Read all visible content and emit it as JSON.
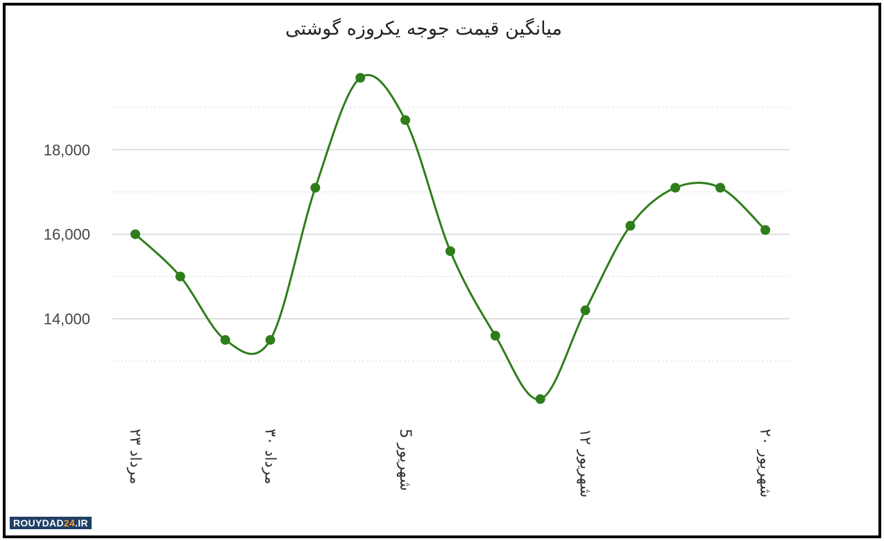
{
  "watermark": {
    "brand_left": "ROUYDAD",
    "brand_num": "24",
    "brand_right": ".IR"
  },
  "chart_data": {
    "type": "line",
    "title": "میانگین قیمت جوجه یکروزه گوشتی",
    "xlabel": "",
    "ylabel": "",
    "ylim": [
      11500,
      19900
    ],
    "y_ticks": [
      14000,
      16000,
      18000
    ],
    "y_tick_labels": [
      "14,000",
      "16,000",
      "18,000"
    ],
    "grid": true,
    "x_tick_labels": [
      "۲۳ مرداد",
      "۳۰ مرداد",
      "5 شهریور",
      "۱۲ شهریور",
      "۲۰ شهریور"
    ],
    "x_tick_positions": [
      0,
      3,
      6,
      10,
      14
    ],
    "series": [
      {
        "name": "",
        "color": "#2e7d1a",
        "values": [
          16000,
          15000,
          13500,
          13500,
          17100,
          19700,
          18700,
          15600,
          13600,
          12100,
          14200,
          16200,
          17100,
          17100,
          16100
        ]
      }
    ]
  }
}
